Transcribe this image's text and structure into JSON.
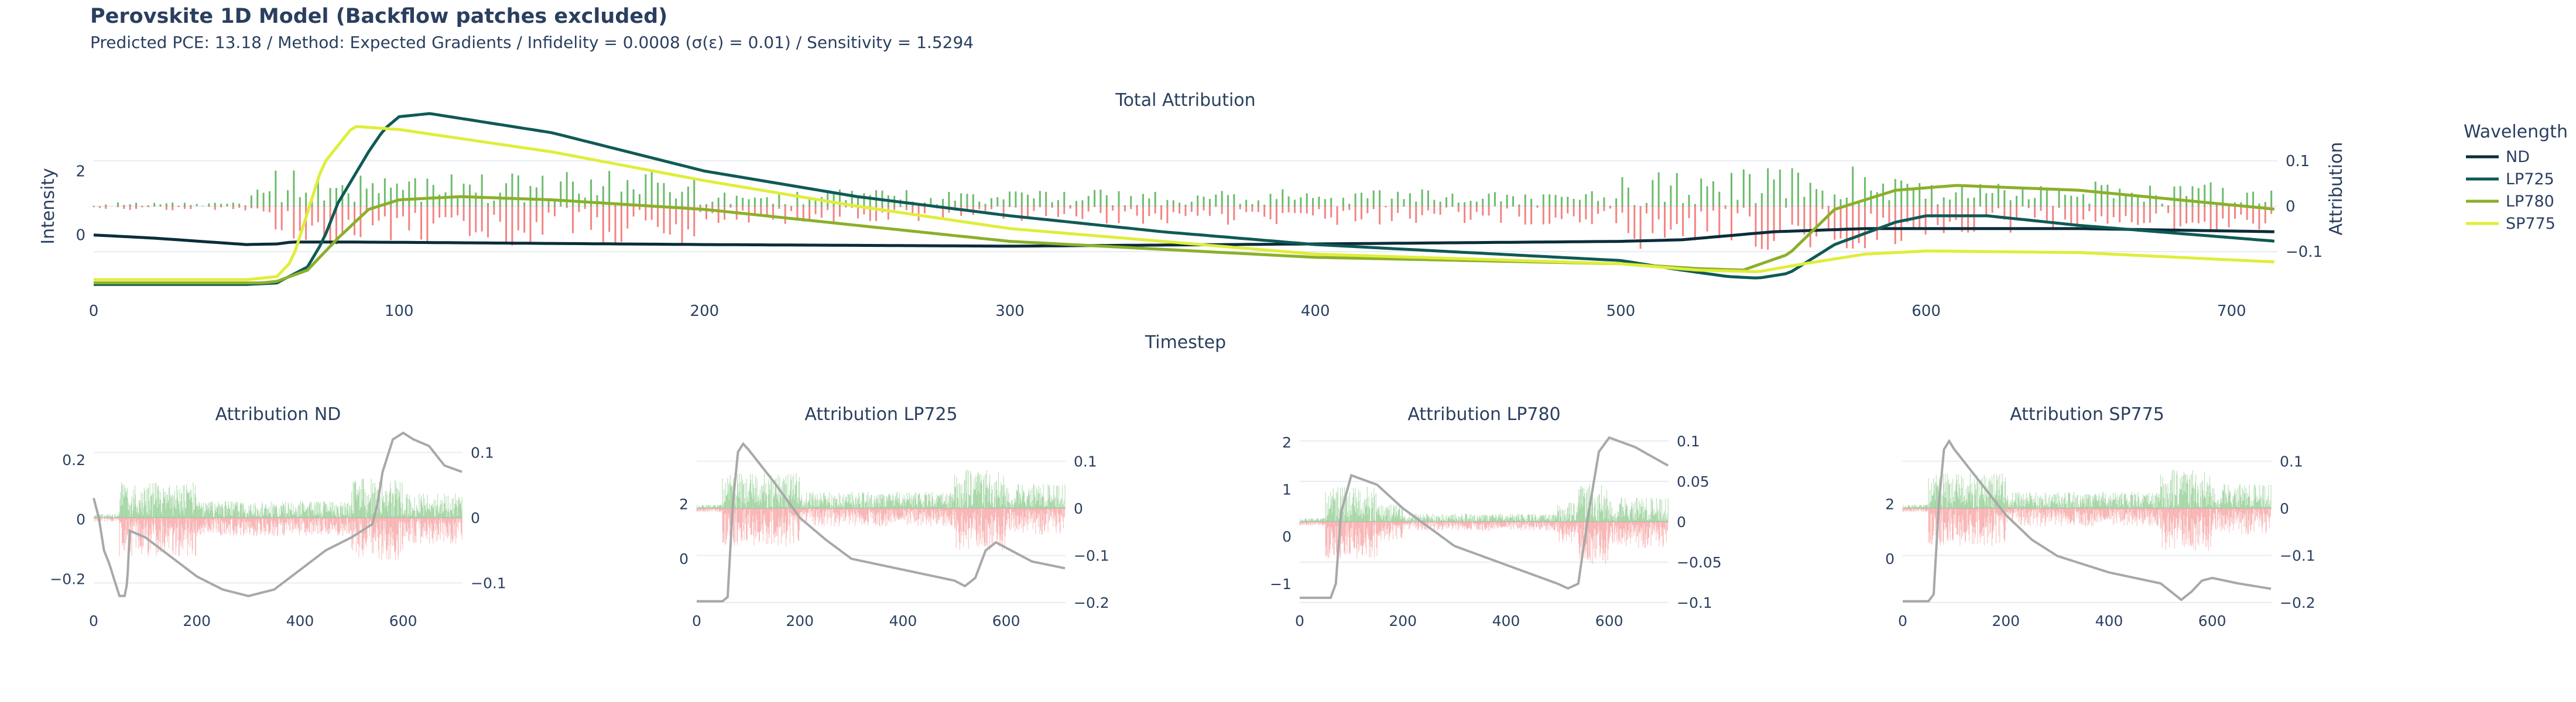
{
  "header": {
    "title": "Perovskite 1D Model (Backflow patches excluded)",
    "subtitle": "Predicted PCE: 13.18 / Method: Expected Gradients / Infidelity = 0.0008 (σ(ε) = 0.01) / Sensitivity = 1.5294"
  },
  "legend": {
    "title": "Wavelength",
    "items": [
      {
        "name": "ND",
        "color": "#0b2d3a"
      },
      {
        "name": "LP725",
        "color": "#0f5a55"
      },
      {
        "name": "LP780",
        "color": "#8bb02a"
      },
      {
        "name": "SP775",
        "color": "#dfee3a"
      }
    ]
  },
  "colors": {
    "positive": "#3aa63a",
    "negative": "#f05a5a",
    "grey_line": "#a8a8a8",
    "grid": "#e8ecf2"
  },
  "chart_data": [
    {
      "id": "main",
      "type": "line",
      "title": "Total Attribution",
      "xlabel": "Timestep",
      "ylabel": "Intensity",
      "y2label": "Attribution",
      "xlim": [
        0,
        715
      ],
      "ylim": [
        -1.8,
        3.6
      ],
      "y2lim": [
        -0.19,
        0.19
      ],
      "xticks": [
        0,
        100,
        200,
        300,
        400,
        500,
        600,
        700
      ],
      "yticks": [
        0,
        2
      ],
      "y2ticks": [
        -0.1,
        0,
        0.1
      ],
      "series": [
        {
          "name": "ND",
          "color": "#0b2d3a",
          "x": [
            0,
            20,
            50,
            60,
            65,
            80,
            100,
            200,
            300,
            400,
            500,
            520,
            550,
            580,
            600,
            650,
            715
          ],
          "y": [
            0.0,
            -0.1,
            -0.3,
            -0.28,
            -0.22,
            -0.22,
            -0.23,
            -0.3,
            -0.35,
            -0.28,
            -0.2,
            -0.15,
            0.1,
            0.2,
            0.2,
            0.2,
            0.1
          ]
        },
        {
          "name": "LP725",
          "color": "#0f5a55",
          "x": [
            0,
            50,
            60,
            70,
            75,
            80,
            90,
            95,
            100,
            110,
            150,
            200,
            250,
            300,
            350,
            400,
            500,
            520,
            535,
            545,
            555,
            570,
            590,
            600,
            620,
            650,
            715
          ],
          "y": [
            -1.55,
            -1.55,
            -1.5,
            -1.0,
            -0.2,
            1.0,
            2.6,
            3.3,
            3.7,
            3.8,
            3.2,
            2.0,
            1.2,
            0.6,
            0.1,
            -0.3,
            -0.8,
            -1.1,
            -1.3,
            -1.35,
            -1.2,
            -0.3,
            0.4,
            0.6,
            0.6,
            0.3,
            -0.2
          ]
        },
        {
          "name": "LP780",
          "color": "#8bb02a",
          "x": [
            0,
            55,
            60,
            70,
            80,
            90,
            100,
            120,
            150,
            200,
            250,
            300,
            400,
            500,
            525,
            540,
            555,
            570,
            590,
            610,
            650,
            715
          ],
          "y": [
            -1.5,
            -1.5,
            -1.45,
            -1.1,
            -0.1,
            0.8,
            1.1,
            1.2,
            1.1,
            0.8,
            0.3,
            -0.2,
            -0.7,
            -0.9,
            -1.05,
            -1.1,
            -0.6,
            0.8,
            1.4,
            1.55,
            1.4,
            0.8
          ]
        },
        {
          "name": "SP775",
          "color": "#dfee3a",
          "x": [
            0,
            50,
            60,
            65,
            75,
            85,
            100,
            150,
            200,
            250,
            300,
            400,
            500,
            525,
            545,
            560,
            580,
            600,
            650,
            715
          ],
          "y": [
            -1.4,
            -1.4,
            -1.3,
            -0.8,
            2.2,
            3.4,
            3.3,
            2.6,
            1.7,
            0.9,
            0.2,
            -0.6,
            -0.9,
            -1.1,
            -1.15,
            -0.9,
            -0.6,
            -0.5,
            -0.55,
            -0.85
          ]
        }
      ]
    },
    {
      "id": "nd",
      "type": "bar",
      "title": "Attribution ND",
      "xlim": [
        0,
        715
      ],
      "ylim": [
        -0.28,
        0.29
      ],
      "y2lim": [
        -0.13,
        0.13
      ],
      "xticks": [
        0,
        200,
        400,
        600
      ],
      "yticks": [
        -0.2,
        0,
        0.2
      ],
      "y2ticks": [
        -0.1,
        0,
        0.1
      ],
      "line": {
        "x": [
          0,
          10,
          20,
          30,
          50,
          60,
          65,
          70,
          100,
          150,
          200,
          250,
          300,
          350,
          400,
          450,
          500,
          520,
          540,
          550,
          560,
          580,
          600,
          620,
          650,
          680,
          715
        ],
        "y": [
          0.03,
          0.0,
          -0.05,
          -0.07,
          -0.12,
          -0.12,
          -0.1,
          -0.02,
          -0.03,
          -0.06,
          -0.09,
          -0.11,
          -0.12,
          -0.11,
          -0.08,
          -0.05,
          -0.03,
          -0.02,
          -0.01,
          0.02,
          0.07,
          0.12,
          0.13,
          0.12,
          0.11,
          0.08,
          0.07
        ]
      }
    },
    {
      "id": "lp725",
      "type": "bar",
      "title": "Attribution LP725",
      "xlim": [
        0,
        715
      ],
      "ylim": [
        -1.6,
        4.6
      ],
      "y2lim": [
        -0.2,
        0.16
      ],
      "xticks": [
        0,
        200,
        400,
        600
      ],
      "yticks": [
        0,
        2
      ],
      "y2ticks": [
        -0.2,
        -0.1,
        0,
        0.1
      ],
      "line": {
        "x": [
          0,
          50,
          60,
          70,
          80,
          90,
          100,
          150,
          200,
          250,
          300,
          400,
          500,
          520,
          540,
          560,
          580,
          600,
          650,
          715
        ],
        "y": [
          -1.55,
          -1.55,
          -1.4,
          2.0,
          3.9,
          4.2,
          4.0,
          2.8,
          1.5,
          0.7,
          0.0,
          -0.4,
          -0.8,
          -1.0,
          -0.7,
          0.3,
          0.6,
          0.4,
          -0.1,
          -0.35
        ]
      }
    },
    {
      "id": "lp780",
      "type": "bar",
      "title": "Attribution LP780",
      "xlim": [
        0,
        715
      ],
      "ylim": [
        -1.4,
        2.2
      ],
      "y2lim": [
        -0.1,
        0.11
      ],
      "xticks": [
        0,
        200,
        400,
        600
      ],
      "yticks": [
        -1,
        0,
        1,
        2
      ],
      "y2ticks": [
        -0.1,
        -0.05,
        0,
        0.05,
        0.1
      ],
      "line": {
        "x": [
          0,
          60,
          70,
          80,
          100,
          150,
          200,
          250,
          300,
          400,
          500,
          520,
          540,
          560,
          580,
          600,
          650,
          715
        ],
        "y": [
          -1.3,
          -1.3,
          -1.0,
          0.5,
          1.3,
          1.1,
          0.6,
          0.2,
          -0.2,
          -0.6,
          -1.0,
          -1.1,
          -1.0,
          0.5,
          1.8,
          2.1,
          1.9,
          1.5
        ]
      }
    },
    {
      "id": "sp775",
      "type": "bar",
      "title": "Attribution SP775",
      "xlim": [
        0,
        715
      ],
      "ylim": [
        -1.6,
        4.6
      ],
      "y2lim": [
        -0.2,
        0.16
      ],
      "xticks": [
        0,
        200,
        400,
        600
      ],
      "yticks": [
        0,
        2
      ],
      "y2ticks": [
        -0.2,
        -0.1,
        0,
        0.1
      ],
      "line": {
        "x": [
          0,
          50,
          60,
          70,
          80,
          90,
          100,
          150,
          200,
          250,
          300,
          400,
          500,
          520,
          540,
          560,
          580,
          600,
          650,
          715
        ],
        "y": [
          -1.55,
          -1.55,
          -1.3,
          2.0,
          4.0,
          4.3,
          4.0,
          2.8,
          1.6,
          0.7,
          0.1,
          -0.5,
          -0.9,
          -1.2,
          -1.5,
          -1.2,
          -0.8,
          -0.7,
          -0.9,
          -1.1
        ]
      }
    }
  ]
}
